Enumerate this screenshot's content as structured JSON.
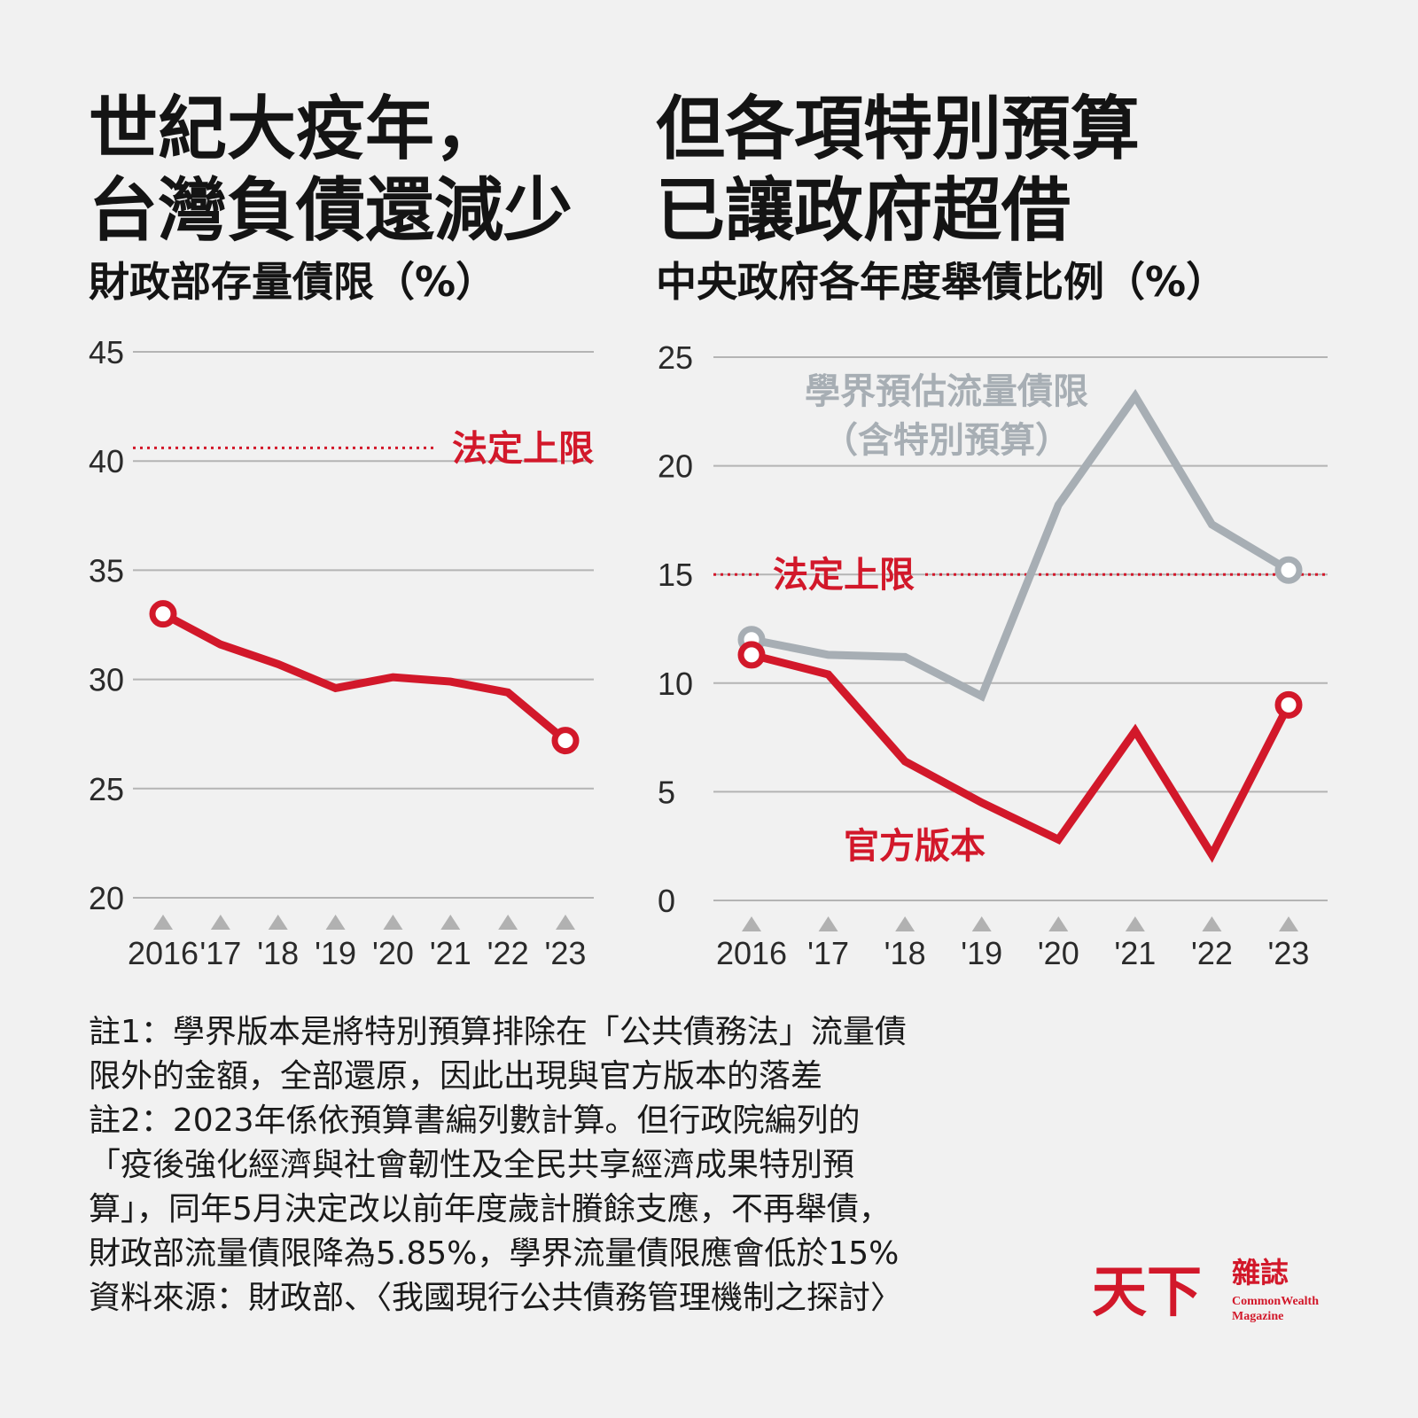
{
  "left": {
    "headline": [
      "世紀大疫年，",
      "台灣負債還減少"
    ],
    "subtitle": "財政部存量債限（%）"
  },
  "right": {
    "headline": [
      "但各項特別預算",
      "已讓政府超借"
    ],
    "subtitle": "中央政府各年度舉債比例（%）"
  },
  "chart_data": [
    {
      "type": "line",
      "title": "財政部存量債限（%）",
      "x": [
        "2016",
        "'17",
        "'18",
        "'19",
        "'20",
        "'21",
        "'22",
        "'23"
      ],
      "yticks": [
        "20",
        "25",
        "30",
        "35",
        "40",
        "45"
      ],
      "ylim": [
        20,
        45
      ],
      "grid": true,
      "series": [
        {
          "values": [
            33.0,
            31.6,
            30.7,
            29.6,
            30.1,
            29.9,
            29.4,
            27.2
          ],
          "color": "#d2182a"
        }
      ],
      "reference_lines": [
        {
          "label": "法定上限",
          "y": 40.6,
          "color": "#d2182a",
          "style": "dotted"
        }
      ]
    },
    {
      "type": "line",
      "title": "中央政府各年度舉債比例（%）",
      "x": [
        "2016",
        "'17",
        "'18",
        "'19",
        "'20",
        "'21",
        "'22",
        "'23"
      ],
      "yticks": [
        "0",
        "5",
        "10",
        "15",
        "20",
        "25"
      ],
      "ylim": [
        0,
        25
      ],
      "grid": true,
      "series": [
        {
          "name_lines": [
            "學界預估流量債限",
            "（含特別預算）"
          ],
          "values": [
            12.0,
            11.3,
            11.2,
            9.4,
            18.2,
            23.2,
            17.3,
            15.2
          ],
          "color": "#a7aeb4"
        },
        {
          "name": "官方版本",
          "values": [
            11.3,
            10.4,
            6.4,
            4.5,
            2.8,
            7.8,
            2.1,
            9.0
          ],
          "color": "#d2182a"
        }
      ],
      "reference_lines": [
        {
          "label": "法定上限",
          "y": 15,
          "color": "#d2182a",
          "style": "dotted"
        }
      ]
    }
  ],
  "notes": [
    "註1：學界版本是將特別預算排除在「公共債務法」流量債",
    "限外的金額，全部還原，因此出現與官方版本的落差",
    "註2：2023年係依預算書編列數計算。但行政院編列的",
    "「疫後強化經濟與社會韌性及全民共享經濟成果特別預",
    "算」，同年5月決定改以前年度歲計賸餘支應，不再舉債，",
    "財政部流量債限降為5.85%，學界流量債限應會低於15%",
    "資料來源：財政部、〈我國現行公共債務管理機制之探討〉"
  ],
  "logo": {
    "mark": "天下",
    "zh": "雜誌",
    "en_lines": [
      "CommonWealth",
      "Magazine"
    ]
  }
}
